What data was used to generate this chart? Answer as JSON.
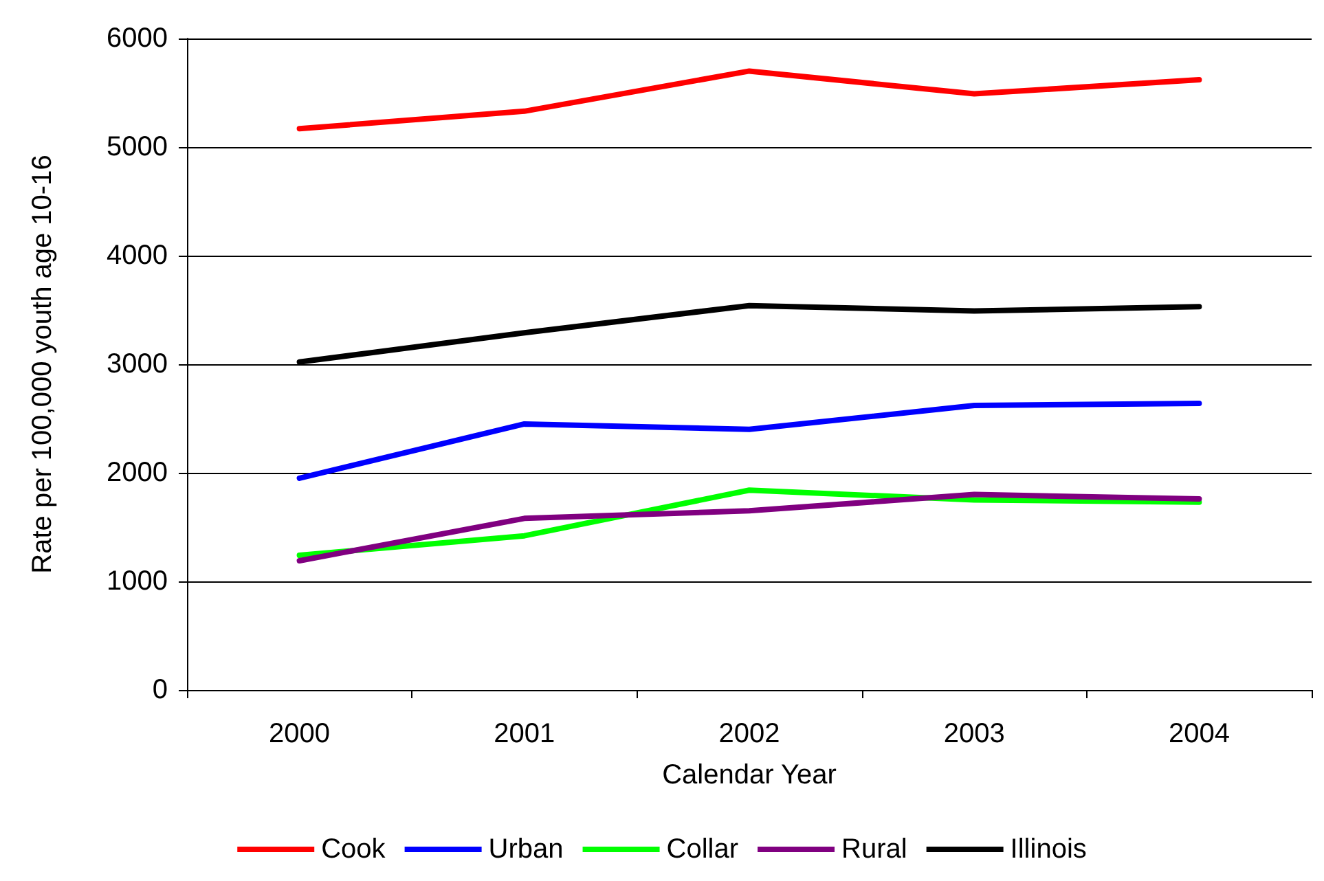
{
  "chart_data": {
    "type": "line",
    "xlabel": "Calendar Year",
    "ylabel": "Rate per 100,000 youth age 10-16",
    "categories": [
      "2000",
      "2001",
      "2002",
      "2003",
      "2004"
    ],
    "series": [
      {
        "name": "Cook",
        "color": "#ff0000",
        "values": [
          5170,
          5330,
          5700,
          5490,
          5620
        ]
      },
      {
        "name": "Urban",
        "color": "#0000ff",
        "values": [
          1950,
          2450,
          2400,
          2620,
          2640
        ]
      },
      {
        "name": "Collar",
        "color": "#00ff00",
        "values": [
          1240,
          1420,
          1840,
          1750,
          1730
        ]
      },
      {
        "name": "Rural",
        "color": "#800080",
        "values": [
          1190,
          1580,
          1650,
          1800,
          1760
        ]
      },
      {
        "name": "Illinois",
        "color": "#000000",
        "values": [
          3020,
          3290,
          3540,
          3490,
          3530
        ]
      }
    ],
    "ylim": [
      0,
      6000
    ],
    "yticks": [
      0,
      1000,
      2000,
      3000,
      4000,
      5000,
      6000
    ],
    "grid": "y",
    "legend": "bottom",
    "marker": "none",
    "line_style": "solid"
  }
}
